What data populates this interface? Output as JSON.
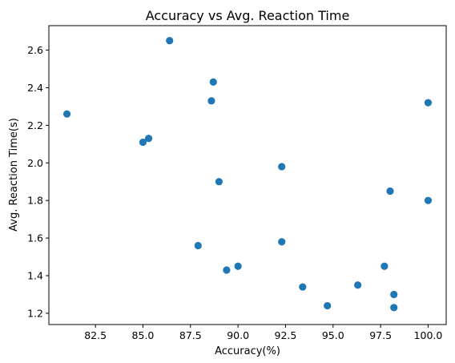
{
  "chart_data": {
    "type": "scatter",
    "title": "Accuracy vs Avg. Reaction Time",
    "xlabel": "Accuracy(%)",
    "ylabel": "Avg. Reaction Time(s)",
    "xlim": [
      80.05,
      100.95
    ],
    "ylim": [
      1.14,
      2.73
    ],
    "xticks": [
      82.5,
      85.0,
      87.5,
      90.0,
      92.5,
      95.0,
      97.5,
      100.0
    ],
    "xtick_labels": [
      "82.5",
      "85.0",
      "87.5",
      "90.0",
      "92.5",
      "95.0",
      "97.5",
      "100.0"
    ],
    "yticks": [
      1.2,
      1.4,
      1.6,
      1.8,
      2.0,
      2.2,
      2.4,
      2.6
    ],
    "ytick_labels": [
      "1.2",
      "1.4",
      "1.6",
      "1.8",
      "2.0",
      "2.2",
      "2.4",
      "2.6"
    ],
    "grid": false,
    "series": [
      {
        "color": "#1f77b4",
        "points": [
          {
            "x": 81.0,
            "y": 2.26
          },
          {
            "x": 85.0,
            "y": 2.11
          },
          {
            "x": 85.3,
            "y": 2.13
          },
          {
            "x": 86.4,
            "y": 2.65
          },
          {
            "x": 87.9,
            "y": 1.56
          },
          {
            "x": 88.6,
            "y": 2.33
          },
          {
            "x": 88.7,
            "y": 2.43
          },
          {
            "x": 89.0,
            "y": 1.9
          },
          {
            "x": 89.4,
            "y": 1.43
          },
          {
            "x": 90.0,
            "y": 1.45
          },
          {
            "x": 92.3,
            "y": 1.98
          },
          {
            "x": 92.3,
            "y": 1.58
          },
          {
            "x": 93.4,
            "y": 1.34
          },
          {
            "x": 94.7,
            "y": 1.24
          },
          {
            "x": 96.3,
            "y": 1.35
          },
          {
            "x": 97.7,
            "y": 1.45
          },
          {
            "x": 98.0,
            "y": 1.85
          },
          {
            "x": 98.2,
            "y": 1.3
          },
          {
            "x": 98.2,
            "y": 1.23
          },
          {
            "x": 100.0,
            "y": 2.32
          },
          {
            "x": 100.0,
            "y": 1.8
          }
        ]
      }
    ]
  }
}
